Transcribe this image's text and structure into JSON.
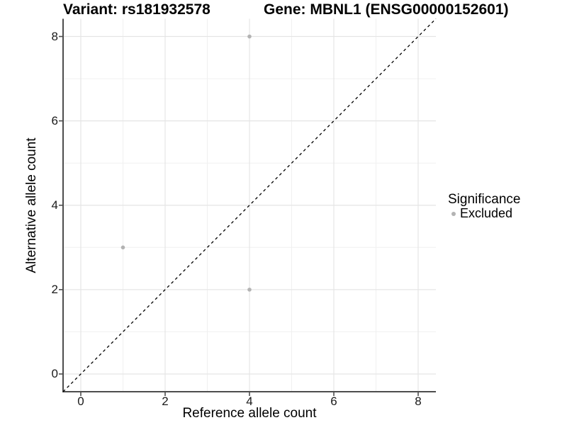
{
  "chart_data": {
    "type": "scatter",
    "title_left": "Variant: rs181932578",
    "title_right": "Gene: MBNL1 (ENSG00000152601)",
    "xlabel": "Reference allele count",
    "ylabel": "Alternative allele count",
    "xlim": [
      -0.42,
      8.42
    ],
    "ylim": [
      -0.42,
      8.42
    ],
    "x_ticks": [
      0,
      2,
      4,
      6,
      8
    ],
    "y_ticks": [
      0,
      2,
      4,
      6,
      8
    ],
    "grid": {
      "major_x": [
        0,
        2,
        4,
        6,
        8
      ],
      "major_y": [
        0,
        2,
        4,
        6,
        8
      ],
      "minor_x": [
        1,
        3,
        5,
        7
      ],
      "minor_y": [
        1,
        3,
        5,
        7
      ],
      "major_color": "#e5e5e5",
      "minor_color": "#f0f0f0"
    },
    "identity_line": {
      "style": "dashed",
      "color": "#000000",
      "from": [
        -0.42,
        -0.42
      ],
      "to": [
        8.42,
        8.42
      ]
    },
    "series": [
      {
        "name": "Excluded",
        "color": "#b3b3b3",
        "point_radius": 2.8,
        "points": [
          [
            4,
            8
          ],
          [
            1,
            3
          ],
          [
            4,
            2
          ]
        ]
      }
    ],
    "legend": {
      "title": "Significance",
      "position": "right",
      "items": [
        {
          "label": "Excluded",
          "color": "#b3b3b3"
        }
      ]
    },
    "axis_color": "#4d4d4d",
    "text_color": "#000000"
  }
}
